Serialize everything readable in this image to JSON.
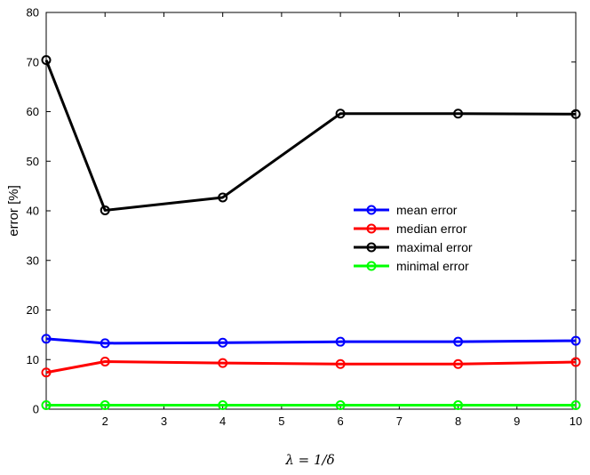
{
  "chart_data": {
    "type": "line",
    "title": "",
    "xlabel": "λ = 1/δ",
    "ylabel": "error [%]",
    "xlim": [
      1,
      10
    ],
    "ylim": [
      0,
      80
    ],
    "x": [
      1,
      2,
      4,
      6,
      8,
      10
    ],
    "x_ticks": [
      2,
      3,
      4,
      5,
      6,
      7,
      8,
      9,
      10
    ],
    "y_ticks": [
      0,
      10,
      20,
      30,
      40,
      50,
      60,
      70,
      80
    ],
    "grid": false,
    "legend_position": "right",
    "series": [
      {
        "name": "mean error",
        "color": "#0000ff",
        "marker": "circle",
        "values": [
          14.2,
          13.3,
          13.4,
          13.6,
          13.6,
          13.8
        ]
      },
      {
        "name": "median error",
        "color": "#ff0000",
        "marker": "circle",
        "values": [
          7.4,
          9.6,
          9.3,
          9.1,
          9.1,
          9.5
        ]
      },
      {
        "name": "maximal error",
        "color": "#000000",
        "marker": "circle",
        "values": [
          70.4,
          40.1,
          42.7,
          59.6,
          59.6,
          59.5
        ]
      },
      {
        "name": "minimal error",
        "color": "#00ff00",
        "marker": "circle",
        "values": [
          0.8,
          0.8,
          0.8,
          0.8,
          0.8,
          0.8
        ]
      }
    ]
  }
}
